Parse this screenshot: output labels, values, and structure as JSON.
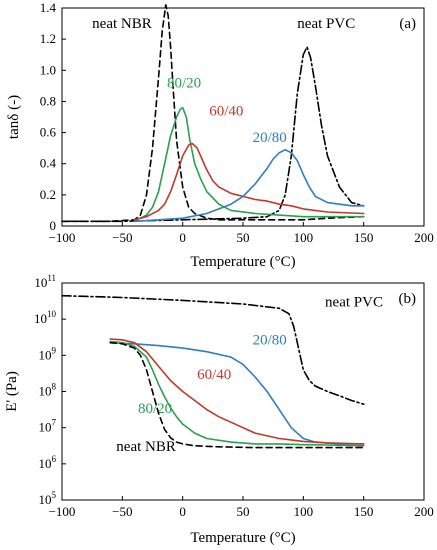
{
  "chart_data": [
    {
      "type": "line",
      "panel_label": "(a)",
      "xlabel": "Temperature (°C)",
      "ylabel": "tanδ (-)",
      "xlim": [
        -100,
        200
      ],
      "ylim": [
        0,
        1.4
      ],
      "xticks": [
        "−100",
        "−50",
        "0",
        "50",
        "100",
        "150",
        "200"
      ],
      "yticks": [
        "0",
        "0.2",
        "0.4",
        "0.6",
        "0.8",
        "1.0",
        "1.2",
        "1.4"
      ],
      "y_scale": "linear",
      "grid": false,
      "series": [
        {
          "name": "neat NBR",
          "color": "#000000",
          "dash": "dashed",
          "label_at": [
            -75,
            1.27
          ],
          "label_color": "#000000",
          "x": [
            -100,
            -60,
            -40,
            -35,
            -30,
            -25,
            -20,
            -17,
            -14,
            -12,
            -10,
            -8,
            -5,
            0,
            5,
            10,
            20,
            30,
            40,
            60,
            80,
            100,
            120,
            150
          ],
          "y": [
            0.03,
            0.03,
            0.04,
            0.07,
            0.2,
            0.5,
            0.95,
            1.25,
            1.42,
            1.35,
            1.15,
            0.9,
            0.55,
            0.25,
            0.12,
            0.08,
            0.05,
            0.04,
            0.04,
            0.04,
            0.04,
            0.04,
            0.05,
            0.06
          ]
        },
        {
          "name": "neat PVC",
          "color": "#000000",
          "dash": "dashdot",
          "label_at": [
            95,
            1.27
          ],
          "label_color": "#000000",
          "x": [
            -100,
            -50,
            0,
            50,
            70,
            80,
            85,
            90,
            95,
            100,
            103,
            106,
            110,
            115,
            120,
            130,
            140,
            150
          ],
          "y": [
            0.03,
            0.03,
            0.04,
            0.05,
            0.06,
            0.1,
            0.2,
            0.45,
            0.85,
            1.1,
            1.15,
            1.08,
            0.9,
            0.65,
            0.45,
            0.25,
            0.15,
            0.13
          ]
        },
        {
          "name": "80/20",
          "color": "#2e9e4f",
          "dash": "solid",
          "label_at": [
            -13,
            0.89
          ],
          "label_color": "#2e9e4f",
          "x": [
            -40,
            -35,
            -30,
            -25,
            -20,
            -15,
            -10,
            -5,
            -2,
            0,
            3,
            6,
            10,
            15,
            20,
            30,
            40,
            60,
            80,
            100,
            120,
            150
          ],
          "y": [
            0.04,
            0.05,
            0.07,
            0.12,
            0.22,
            0.4,
            0.58,
            0.7,
            0.75,
            0.76,
            0.7,
            0.55,
            0.4,
            0.3,
            0.22,
            0.14,
            0.1,
            0.08,
            0.07,
            0.06,
            0.06,
            0.06
          ]
        },
        {
          "name": "60/40",
          "color": "#c0392b",
          "dash": "solid",
          "label_at": [
            22,
            0.71
          ],
          "label_color": "#c0392b",
          "x": [
            -40,
            -30,
            -20,
            -15,
            -10,
            -5,
            0,
            5,
            8,
            12,
            16,
            20,
            25,
            30,
            40,
            50,
            60,
            70,
            80,
            90,
            100,
            120,
            150
          ],
          "y": [
            0.04,
            0.06,
            0.1,
            0.14,
            0.22,
            0.33,
            0.45,
            0.52,
            0.53,
            0.5,
            0.43,
            0.36,
            0.29,
            0.25,
            0.21,
            0.19,
            0.17,
            0.16,
            0.14,
            0.13,
            0.11,
            0.09,
            0.08
          ]
        },
        {
          "name": "20/80",
          "color": "#2f7fc1",
          "dash": "solid",
          "label_at": [
            58,
            0.54
          ],
          "label_color": "#2f7fc1",
          "x": [
            -40,
            -20,
            0,
            20,
            40,
            50,
            60,
            70,
            75,
            80,
            85,
            90,
            95,
            100,
            105,
            110,
            120,
            130,
            140,
            150
          ],
          "y": [
            0.03,
            0.04,
            0.05,
            0.08,
            0.14,
            0.19,
            0.27,
            0.37,
            0.43,
            0.47,
            0.49,
            0.47,
            0.42,
            0.33,
            0.25,
            0.19,
            0.15,
            0.14,
            0.13,
            0.13
          ]
        }
      ]
    },
    {
      "type": "line",
      "panel_label": "(b)",
      "xlabel": "Temperature (°C)",
      "ylabel": "E' (Pa)",
      "xlim": [
        -100,
        200
      ],
      "ylim": [
        5,
        11
      ],
      "y_scale": "log10",
      "xticks": [
        "−100",
        "−50",
        "0",
        "50",
        "100",
        "150",
        "200"
      ],
      "yticks": [
        {
          "base": "10",
          "exp": "5"
        },
        {
          "base": "10",
          "exp": "6"
        },
        {
          "base": "10",
          "exp": "7"
        },
        {
          "base": "10",
          "exp": "8"
        },
        {
          "base": "10",
          "exp": "9"
        },
        {
          "base": "10",
          "exp": "10"
        },
        {
          "base": "10",
          "exp": "11"
        }
      ],
      "grid": false,
      "series": [
        {
          "name": "neat PVC",
          "color": "#000000",
          "dash": "dashdot",
          "label_at": [
            118,
            10.35
          ],
          "label_color": "#000000",
          "x": [
            -100,
            -50,
            0,
            50,
            80,
            88,
            92,
            96,
            100,
            105,
            110,
            120,
            130,
            140,
            150
          ],
          "y": [
            10.65,
            10.6,
            10.52,
            10.42,
            10.3,
            10.15,
            9.8,
            9.2,
            8.6,
            8.3,
            8.15,
            8.0,
            7.88,
            7.75,
            7.65
          ]
        },
        {
          "name": "20/80",
          "color": "#2f7fc1",
          "dash": "solid",
          "label_at": [
            58,
            9.3
          ],
          "label_color": "#2f7fc1",
          "x": [
            -60,
            -40,
            -20,
            0,
            20,
            40,
            50,
            60,
            70,
            80,
            90,
            100,
            110,
            130,
            150
          ],
          "y": [
            9.35,
            9.32,
            9.27,
            9.2,
            9.1,
            8.95,
            8.75,
            8.4,
            8.0,
            7.5,
            7.0,
            6.7,
            6.6,
            6.55,
            6.55
          ]
        },
        {
          "name": "60/40",
          "color": "#c0392b",
          "dash": "solid",
          "label_at": [
            12,
            8.35
          ],
          "label_color": "#c0392b",
          "x": [
            -60,
            -50,
            -40,
            -30,
            -20,
            -10,
            0,
            10,
            20,
            30,
            40,
            50,
            60,
            80,
            100,
            120,
            150
          ],
          "y": [
            9.45,
            9.43,
            9.35,
            9.1,
            8.7,
            8.3,
            8.0,
            7.75,
            7.5,
            7.3,
            7.15,
            7.0,
            6.85,
            6.7,
            6.62,
            6.58,
            6.55
          ]
        },
        {
          "name": "80/20",
          "color": "#2e9e4f",
          "dash": "solid",
          "label_at": [
            -37,
            7.4
          ],
          "label_color": "#2e9e4f",
          "x": [
            -60,
            -50,
            -40,
            -30,
            -25,
            -20,
            -15,
            -10,
            -5,
            0,
            10,
            20,
            40,
            60,
            80,
            100,
            120,
            150
          ],
          "y": [
            9.38,
            9.35,
            9.25,
            8.95,
            8.6,
            8.2,
            7.85,
            7.55,
            7.3,
            7.1,
            6.85,
            6.7,
            6.6,
            6.55,
            6.55,
            6.53,
            6.52,
            6.5
          ]
        },
        {
          "name": "neat NBR",
          "color": "#000000",
          "dash": "dashed",
          "label_at": [
            -55,
            6.35
          ],
          "label_color": "#000000",
          "x": [
            -60,
            -50,
            -40,
            -35,
            -30,
            -25,
            -20,
            -15,
            -10,
            -5,
            0,
            10,
            30,
            60,
            100,
            150
          ],
          "y": [
            9.35,
            9.32,
            9.2,
            9.0,
            8.6,
            8.0,
            7.4,
            6.95,
            6.72,
            6.6,
            6.55,
            6.5,
            6.47,
            6.45,
            6.45,
            6.45
          ]
        }
      ]
    }
  ]
}
